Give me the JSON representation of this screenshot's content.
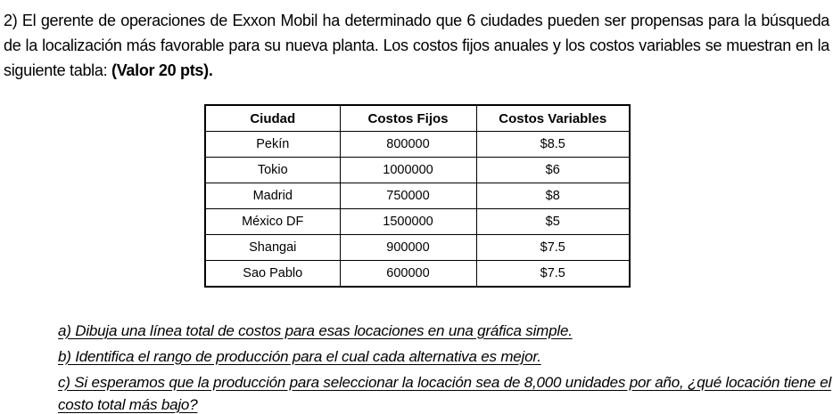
{
  "intro": {
    "text": "2) El gerente de operaciones de Exxon Mobil ha determinado que 6 ciudades pueden ser propensas para la búsqueda de la localización más favorable para su nueva planta. Los costos fijos anuales y los costos variables se muestran en la siguiente tabla: ",
    "points_bold": "(Valor 20 pts)."
  },
  "table": {
    "headers": [
      "Ciudad",
      "Costos Fijos",
      "Costos Variables"
    ],
    "rows": [
      [
        "Pekín",
        "800000",
        "$8.5"
      ],
      [
        "Tokio",
        "1000000",
        "$6"
      ],
      [
        "Madrid",
        "750000",
        "$8"
      ],
      [
        "México DF",
        "1500000",
        "$5"
      ],
      [
        "Shangai",
        "900000",
        "$7.5"
      ],
      [
        "Sao Pablo",
        "600000",
        "$7.5"
      ]
    ]
  },
  "questions": [
    "a) Dibuja una línea total de costos para esas locaciones en una gráfica simple.",
    "b) Identifica el rango de producción para el cual cada alternativa es mejor.",
    "c) Si esperamos que la producción para seleccionar la locación sea de 8,000 unidades por año, ¿qué locación tiene el costo total más bajo?"
  ],
  "colors": {
    "text": "#000000",
    "background": "#ffffff",
    "table_border": "#000000"
  }
}
